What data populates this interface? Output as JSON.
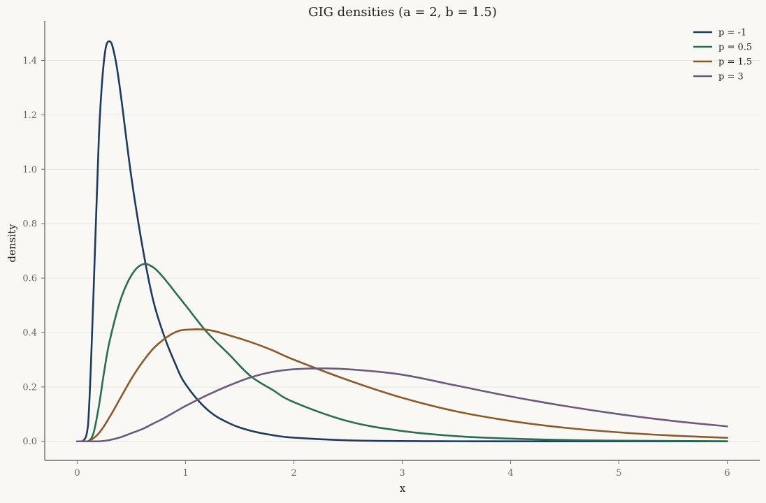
{
  "chart_data": {
    "type": "line",
    "title": "GIG densities (a = 2, b = 1.5)",
    "xlabel": "x",
    "ylabel": "density",
    "xlim": [
      -0.3,
      6.3
    ],
    "ylim": [
      -0.07,
      1.545
    ],
    "x_ticks": [
      0,
      1,
      2,
      3,
      4,
      5,
      6
    ],
    "y_ticks": [
      0.0,
      0.2,
      0.4,
      0.6,
      0.8,
      1.0,
      1.2,
      1.4
    ],
    "x_tick_labels": [
      "0",
      "1",
      "2",
      "3",
      "4",
      "5",
      "6"
    ],
    "y_tick_labels": [
      "0.0",
      "0.2",
      "0.4",
      "0.6",
      "0.8",
      "1.0",
      "1.2",
      "1.4"
    ],
    "grid": "horizontal",
    "legend_position": "top-right",
    "series": [
      {
        "name": "p = -1",
        "color": "#1f3a5f",
        "x": [
          0,
          0.05,
          0.1,
          0.15,
          0.2,
          0.25,
          0.3,
          0.35,
          0.4,
          0.5,
          0.6,
          0.7,
          0.8,
          0.9,
          1.0,
          1.2,
          1.4,
          1.6,
          1.8,
          2.0,
          2.5,
          3.0,
          3.5,
          4.0,
          5.0,
          6.0
        ],
        "y": [
          0,
          0.0,
          0.06,
          0.54,
          1.12,
          1.41,
          1.47,
          1.41,
          1.28,
          0.97,
          0.72,
          0.52,
          0.39,
          0.29,
          0.21,
          0.117,
          0.067,
          0.039,
          0.023,
          0.0135,
          0.0036,
          0.001,
          0.0003,
          0.0001,
          0.0,
          0.0
        ]
      },
      {
        "name": "p = 0.5",
        "color": "#2a6e52",
        "x": [
          0,
          0.05,
          0.1,
          0.15,
          0.2,
          0.25,
          0.3,
          0.4,
          0.5,
          0.6,
          0.7,
          0.8,
          0.9,
          1.0,
          1.2,
          1.4,
          1.6,
          1.8,
          2.0,
          2.5,
          3.0,
          3.5,
          4.0,
          4.5,
          5.0,
          6.0
        ],
        "y": [
          0,
          0.0,
          0.0,
          0.03,
          0.13,
          0.26,
          0.37,
          0.52,
          0.61,
          0.65,
          0.64,
          0.6,
          0.55,
          0.5,
          0.4,
          0.32,
          0.24,
          0.19,
          0.144,
          0.074,
          0.038,
          0.019,
          0.01,
          0.005,
          0.0025,
          0.0005
        ]
      },
      {
        "name": "p = 1.5",
        "color": "#8a5a2b",
        "x": [
          0,
          0.1,
          0.2,
          0.3,
          0.4,
          0.5,
          0.6,
          0.7,
          0.8,
          0.9,
          1.0,
          1.2,
          1.4,
          1.6,
          1.8,
          2.0,
          2.5,
          3.0,
          3.5,
          4.0,
          4.5,
          5.0,
          5.5,
          6.0
        ],
        "y": [
          0,
          0.0,
          0.03,
          0.09,
          0.16,
          0.23,
          0.29,
          0.34,
          0.375,
          0.4,
          0.41,
          0.41,
          0.39,
          0.365,
          0.335,
          0.3,
          0.225,
          0.16,
          0.11,
          0.075,
          0.05,
          0.033,
          0.021,
          0.013
        ]
      },
      {
        "name": "p = 3",
        "color": "#6b5b7b",
        "x": [
          0,
          0.2,
          0.3,
          0.4,
          0.5,
          0.6,
          0.7,
          0.8,
          1.0,
          1.2,
          1.4,
          1.6,
          1.8,
          2.0,
          2.3,
          2.6,
          3.0,
          3.5,
          4.0,
          4.5,
          5.0,
          5.5,
          6.0
        ],
        "y": [
          0,
          0.0,
          0.005,
          0.015,
          0.03,
          0.045,
          0.065,
          0.085,
          0.13,
          0.17,
          0.205,
          0.235,
          0.255,
          0.265,
          0.268,
          0.262,
          0.245,
          0.205,
          0.165,
          0.13,
          0.1,
          0.075,
          0.055
        ]
      }
    ]
  }
}
